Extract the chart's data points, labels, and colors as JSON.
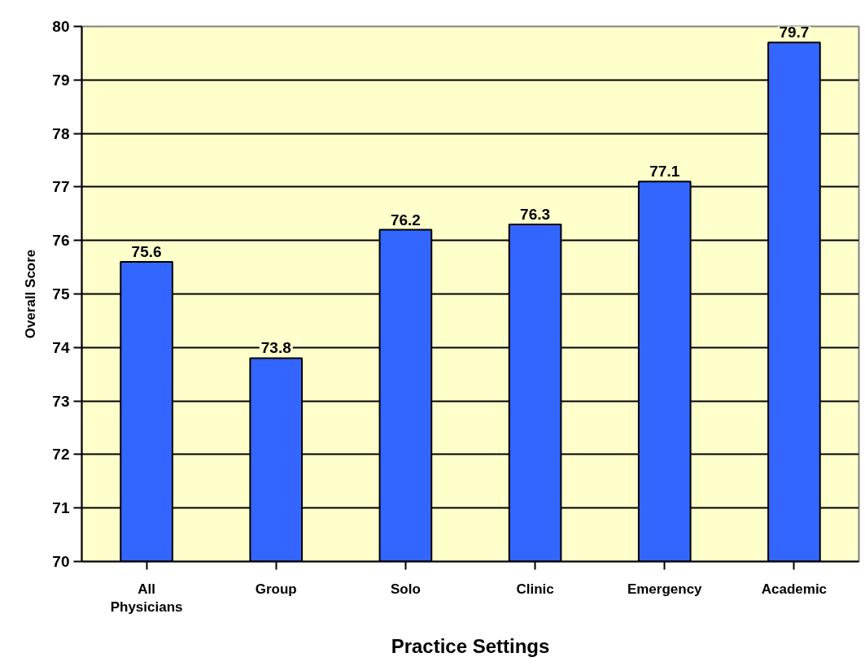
{
  "chart_data": {
    "type": "bar",
    "xlabel": "Practice Settings",
    "ylabel": "Overall Score",
    "categories": [
      "All Physicians",
      "Group",
      "Solo",
      "Clinic",
      "Emergency",
      "Academic"
    ],
    "values": [
      75.6,
      73.8,
      76.2,
      76.3,
      77.1,
      79.7
    ],
    "color": "#3366ff",
    "ylim": [
      70,
      80
    ],
    "yticks": [
      70,
      71,
      72,
      73,
      74,
      75,
      76,
      77,
      78,
      79,
      80
    ],
    "grid": "y",
    "data_labels": true
  }
}
